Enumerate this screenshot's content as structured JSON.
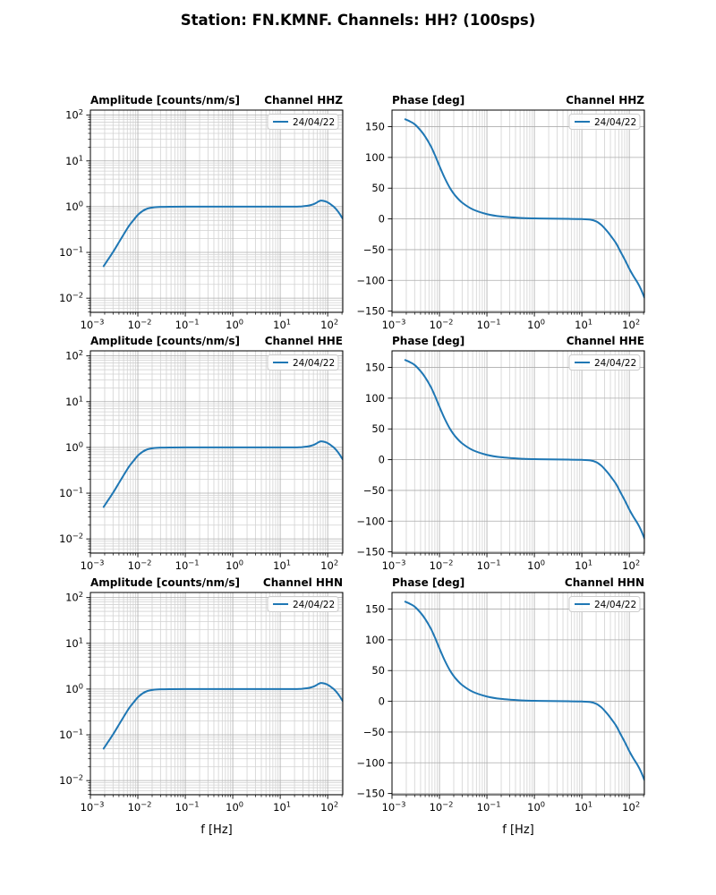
{
  "figure": {
    "title": "Station: FN.KMNF. Channels: HH? (100sps)",
    "colors": {
      "line": "#1f77b4",
      "grid_major": "#adadad",
      "grid_minor": "#d2d2d2",
      "frame": "#000000",
      "background": "#ffffff",
      "legend_edge": "#cccccc"
    }
  },
  "chart_data": [
    {
      "id": "hhz-amplitude",
      "type": "line",
      "channel": "HHZ",
      "quantity": "amplitude",
      "row": 0,
      "col": 0,
      "title_left": "Amplitude [counts/nm/s]",
      "title_right": "Channel HHZ",
      "x_scale": "log",
      "y_scale": "log",
      "xlim": [
        0.001,
        208
      ],
      "ylim": [
        0.0049,
        129
      ],
      "xtick_exponents": [
        -3,
        -2,
        -1,
        0,
        1,
        2
      ],
      "ytick_exponents": [
        2,
        1,
        0,
        -1,
        -2
      ],
      "xlabel": "",
      "legend_label": "24/04/22",
      "grid": "both",
      "points": [
        [
          0.0019,
          0.05
        ],
        [
          0.0024,
          0.072
        ],
        [
          0.003,
          0.102
        ],
        [
          0.004,
          0.167
        ],
        [
          0.005,
          0.245
        ],
        [
          0.0065,
          0.38
        ],
        [
          0.008,
          0.5
        ],
        [
          0.01,
          0.66
        ],
        [
          0.0125,
          0.8
        ],
        [
          0.016,
          0.91
        ],
        [
          0.021,
          0.965
        ],
        [
          0.03,
          0.99
        ],
        [
          0.05,
          0.998
        ],
        [
          0.1,
          1.0
        ],
        [
          0.3,
          1.0
        ],
        [
          1,
          1.0
        ],
        [
          3,
          1.0
        ],
        [
          10,
          1.0
        ],
        [
          15,
          1.0
        ],
        [
          20,
          1.0
        ],
        [
          25,
          1.005
        ],
        [
          30,
          1.02
        ],
        [
          40,
          1.06
        ],
        [
          50,
          1.13
        ],
        [
          58,
          1.22
        ],
        [
          65,
          1.31
        ],
        [
          72,
          1.355
        ],
        [
          80,
          1.345
        ],
        [
          90,
          1.3
        ],
        [
          100,
          1.24
        ],
        [
          115,
          1.13
        ],
        [
          134,
          1.0
        ],
        [
          155,
          0.85
        ],
        [
          175,
          0.72
        ],
        [
          192,
          0.62
        ],
        [
          208,
          0.545
        ]
      ]
    },
    {
      "id": "hhz-phase",
      "type": "line",
      "channel": "HHZ",
      "quantity": "phase",
      "row": 0,
      "col": 1,
      "title_left": "Phase [deg]",
      "title_right": "Channel HHZ",
      "x_scale": "log",
      "y_scale": "linear",
      "xlim": [
        0.001,
        208
      ],
      "ylim": [
        -152,
        177
      ],
      "xtick_exponents": [
        -3,
        -2,
        -1,
        0,
        1,
        2
      ],
      "yticks": [
        150,
        100,
        50,
        0,
        -50,
        -100,
        -150
      ],
      "xlabel": "",
      "legend_label": "24/04/22",
      "grid": "both",
      "points": [
        [
          0.0019,
          162
        ],
        [
          0.0024,
          158.5
        ],
        [
          0.003,
          154
        ],
        [
          0.004,
          144
        ],
        [
          0.005,
          134
        ],
        [
          0.0065,
          119
        ],
        [
          0.008,
          104
        ],
        [
          0.01,
          86
        ],
        [
          0.013,
          66
        ],
        [
          0.017,
          49
        ],
        [
          0.022,
          37
        ],
        [
          0.03,
          26.5
        ],
        [
          0.05,
          15.6
        ],
        [
          0.1,
          7.8
        ],
        [
          0.2,
          3.9
        ],
        [
          0.5,
          1.6
        ],
        [
          1,
          0.8
        ],
        [
          2,
          0.4
        ],
        [
          5,
          0.1
        ],
        [
          10,
          -0.3
        ],
        [
          15,
          -1.2
        ],
        [
          20,
          -4
        ],
        [
          25,
          -9
        ],
        [
          30,
          -15
        ],
        [
          35,
          -21
        ],
        [
          42,
          -29
        ],
        [
          53,
          -40
        ],
        [
          65,
          -53
        ],
        [
          80,
          -66
        ],
        [
          100,
          -81
        ],
        [
          120,
          -92
        ],
        [
          150,
          -104
        ],
        [
          175,
          -114
        ],
        [
          208,
          -128
        ]
      ]
    },
    {
      "id": "hhe-amplitude",
      "type": "line",
      "channel": "HHE",
      "quantity": "amplitude",
      "row": 1,
      "col": 0,
      "title_left": "Amplitude [counts/nm/s]",
      "title_right": "Channel HHE",
      "x_scale": "log",
      "y_scale": "log",
      "xlim": [
        0.001,
        208
      ],
      "ylim": [
        0.0049,
        129
      ],
      "xtick_exponents": [
        -3,
        -2,
        -1,
        0,
        1,
        2
      ],
      "ytick_exponents": [
        2,
        1,
        0,
        -1,
        -2
      ],
      "xlabel": "",
      "legend_label": "24/04/22",
      "grid": "both",
      "points": [
        [
          0.0019,
          0.05
        ],
        [
          0.0024,
          0.072
        ],
        [
          0.003,
          0.102
        ],
        [
          0.004,
          0.167
        ],
        [
          0.005,
          0.245
        ],
        [
          0.0065,
          0.38
        ],
        [
          0.008,
          0.5
        ],
        [
          0.01,
          0.66
        ],
        [
          0.0125,
          0.8
        ],
        [
          0.016,
          0.91
        ],
        [
          0.021,
          0.965
        ],
        [
          0.03,
          0.99
        ],
        [
          0.05,
          0.998
        ],
        [
          0.1,
          1.0
        ],
        [
          0.3,
          1.0
        ],
        [
          1,
          1.0
        ],
        [
          3,
          1.0
        ],
        [
          10,
          1.0
        ],
        [
          15,
          1.0
        ],
        [
          20,
          1.0
        ],
        [
          25,
          1.005
        ],
        [
          30,
          1.02
        ],
        [
          40,
          1.06
        ],
        [
          50,
          1.13
        ],
        [
          58,
          1.22
        ],
        [
          65,
          1.31
        ],
        [
          72,
          1.355
        ],
        [
          80,
          1.345
        ],
        [
          90,
          1.3
        ],
        [
          100,
          1.24
        ],
        [
          115,
          1.13
        ],
        [
          134,
          1.0
        ],
        [
          155,
          0.85
        ],
        [
          175,
          0.72
        ],
        [
          192,
          0.62
        ],
        [
          208,
          0.545
        ]
      ]
    },
    {
      "id": "hhe-phase",
      "type": "line",
      "channel": "HHE",
      "quantity": "phase",
      "row": 1,
      "col": 1,
      "title_left": "Phase [deg]",
      "title_right": "Channel HHE",
      "x_scale": "log",
      "y_scale": "linear",
      "xlim": [
        0.001,
        208
      ],
      "ylim": [
        -152,
        177
      ],
      "xtick_exponents": [
        -3,
        -2,
        -1,
        0,
        1,
        2
      ],
      "yticks": [
        150,
        100,
        50,
        0,
        -50,
        -100,
        -150
      ],
      "xlabel": "",
      "legend_label": "24/04/22",
      "grid": "both",
      "points": [
        [
          0.0019,
          162
        ],
        [
          0.0024,
          158.5
        ],
        [
          0.003,
          154
        ],
        [
          0.004,
          144
        ],
        [
          0.005,
          134
        ],
        [
          0.0065,
          119
        ],
        [
          0.008,
          104
        ],
        [
          0.01,
          86
        ],
        [
          0.013,
          66
        ],
        [
          0.017,
          49
        ],
        [
          0.022,
          37
        ],
        [
          0.03,
          26.5
        ],
        [
          0.05,
          15.6
        ],
        [
          0.1,
          7.8
        ],
        [
          0.2,
          3.9
        ],
        [
          0.5,
          1.6
        ],
        [
          1,
          0.8
        ],
        [
          2,
          0.4
        ],
        [
          5,
          0.1
        ],
        [
          10,
          -0.3
        ],
        [
          15,
          -1.2
        ],
        [
          20,
          -4
        ],
        [
          25,
          -9
        ],
        [
          30,
          -15
        ],
        [
          35,
          -21
        ],
        [
          42,
          -29
        ],
        [
          53,
          -40
        ],
        [
          65,
          -53
        ],
        [
          80,
          -66
        ],
        [
          100,
          -81
        ],
        [
          120,
          -92
        ],
        [
          150,
          -104
        ],
        [
          175,
          -114
        ],
        [
          208,
          -128
        ]
      ]
    },
    {
      "id": "hhn-amplitude",
      "type": "line",
      "channel": "HHN",
      "quantity": "amplitude",
      "row": 2,
      "col": 0,
      "title_left": "Amplitude [counts/nm/s]",
      "title_right": "Channel HHN",
      "x_scale": "log",
      "y_scale": "log",
      "xlim": [
        0.001,
        208
      ],
      "ylim": [
        0.0049,
        129
      ],
      "xtick_exponents": [
        -3,
        -2,
        -1,
        0,
        1,
        2
      ],
      "ytick_exponents": [
        2,
        1,
        0,
        -1,
        -2
      ],
      "xlabel": "f [Hz]",
      "legend_label": "24/04/22",
      "grid": "both",
      "points": [
        [
          0.0019,
          0.05
        ],
        [
          0.0024,
          0.072
        ],
        [
          0.003,
          0.102
        ],
        [
          0.004,
          0.167
        ],
        [
          0.005,
          0.245
        ],
        [
          0.0065,
          0.38
        ],
        [
          0.008,
          0.5
        ],
        [
          0.01,
          0.66
        ],
        [
          0.0125,
          0.8
        ],
        [
          0.016,
          0.91
        ],
        [
          0.021,
          0.965
        ],
        [
          0.03,
          0.99
        ],
        [
          0.05,
          0.998
        ],
        [
          0.1,
          1.0
        ],
        [
          0.3,
          1.0
        ],
        [
          1,
          1.0
        ],
        [
          3,
          1.0
        ],
        [
          10,
          1.0
        ],
        [
          15,
          1.0
        ],
        [
          20,
          1.0
        ],
        [
          25,
          1.005
        ],
        [
          30,
          1.02
        ],
        [
          40,
          1.06
        ],
        [
          50,
          1.13
        ],
        [
          58,
          1.22
        ],
        [
          65,
          1.31
        ],
        [
          72,
          1.355
        ],
        [
          80,
          1.345
        ],
        [
          90,
          1.3
        ],
        [
          100,
          1.24
        ],
        [
          115,
          1.13
        ],
        [
          134,
          1.0
        ],
        [
          155,
          0.85
        ],
        [
          175,
          0.72
        ],
        [
          192,
          0.62
        ],
        [
          208,
          0.545
        ]
      ]
    },
    {
      "id": "hhn-phase",
      "type": "line",
      "channel": "HHN",
      "quantity": "phase",
      "row": 2,
      "col": 1,
      "title_left": "Phase [deg]",
      "title_right": "Channel HHN",
      "x_scale": "log",
      "y_scale": "linear",
      "xlim": [
        0.001,
        208
      ],
      "ylim": [
        -152,
        177
      ],
      "xtick_exponents": [
        -3,
        -2,
        -1,
        0,
        1,
        2
      ],
      "yticks": [
        150,
        100,
        50,
        0,
        -50,
        -100,
        -150
      ],
      "xlabel": "f [Hz]",
      "legend_label": "24/04/22",
      "grid": "both",
      "points": [
        [
          0.0019,
          162
        ],
        [
          0.0024,
          158.5
        ],
        [
          0.003,
          154
        ],
        [
          0.004,
          144
        ],
        [
          0.005,
          134
        ],
        [
          0.0065,
          119
        ],
        [
          0.008,
          104
        ],
        [
          0.01,
          86
        ],
        [
          0.013,
          66
        ],
        [
          0.017,
          49
        ],
        [
          0.022,
          37
        ],
        [
          0.03,
          26.5
        ],
        [
          0.05,
          15.6
        ],
        [
          0.1,
          7.8
        ],
        [
          0.2,
          3.9
        ],
        [
          0.5,
          1.6
        ],
        [
          1,
          0.8
        ],
        [
          2,
          0.4
        ],
        [
          5,
          0.1
        ],
        [
          10,
          -0.3
        ],
        [
          15,
          -1.2
        ],
        [
          20,
          -4
        ],
        [
          25,
          -9
        ],
        [
          30,
          -15
        ],
        [
          35,
          -21
        ],
        [
          42,
          -29
        ],
        [
          53,
          -40
        ],
        [
          65,
          -53
        ],
        [
          80,
          -66
        ],
        [
          100,
          -81
        ],
        [
          120,
          -92
        ],
        [
          150,
          -104
        ],
        [
          175,
          -114
        ],
        [
          208,
          -128
        ]
      ]
    }
  ]
}
